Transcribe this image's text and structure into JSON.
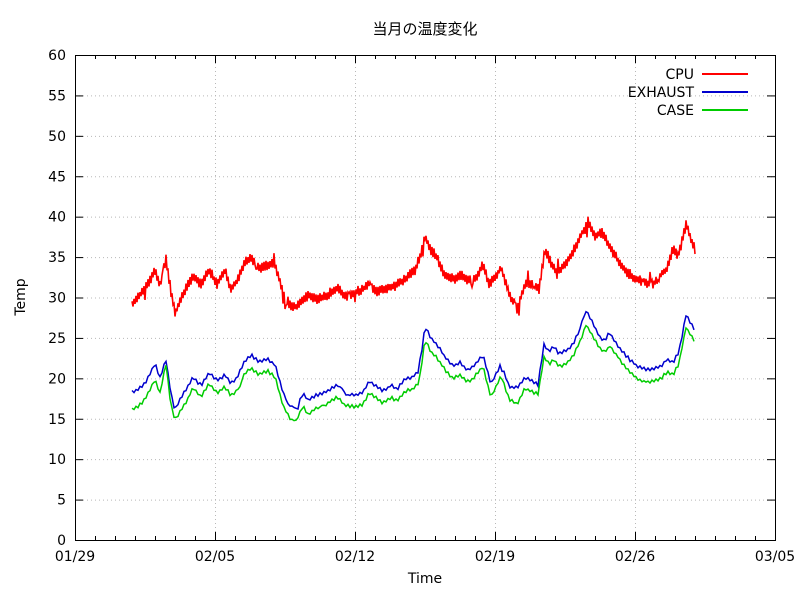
{
  "chart_data": {
    "type": "line",
    "title": "当月の温度変化",
    "xlabel": "Time",
    "ylabel": "Temp",
    "x_unit": "days after 01/29",
    "x_axis": {
      "tick_labels": [
        "01/29",
        "02/05",
        "02/12",
        "02/19",
        "02/26",
        "03/05"
      ],
      "tick_days": [
        0,
        7,
        14,
        21,
        28,
        35
      ],
      "minor_tick_interval_days": 1,
      "range_days": [
        0,
        35
      ]
    },
    "y_axis": {
      "ticks": [
        0,
        5,
        10,
        15,
        20,
        25,
        30,
        35,
        40,
        45,
        50,
        55,
        60
      ],
      "range": [
        0,
        60
      ]
    },
    "grid": {
      "visible": true,
      "style": "dotted",
      "color": "#b8b8b8"
    },
    "legend": {
      "position": "top-right-inside",
      "entries": [
        "CPU",
        "EXHAUST",
        "CASE"
      ]
    },
    "series": [
      {
        "name": "CPU",
        "color": "#ff0000",
        "style": "noisy-thick",
        "points": [
          [
            2.85,
            29.3
          ],
          [
            3.1,
            29.8
          ],
          [
            3.4,
            30.8
          ],
          [
            3.7,
            31.9
          ],
          [
            4.0,
            33.2
          ],
          [
            4.25,
            31.3
          ],
          [
            4.55,
            34.4
          ],
          [
            4.8,
            30.3
          ],
          [
            5.0,
            27.7
          ],
          [
            5.3,
            29.6
          ],
          [
            5.6,
            31.0
          ],
          [
            5.9,
            32.3
          ],
          [
            6.3,
            31.2
          ],
          [
            6.7,
            32.9
          ],
          [
            7.1,
            31.4
          ],
          [
            7.5,
            33.1
          ],
          [
            7.8,
            30.9
          ],
          [
            8.1,
            32.0
          ],
          [
            8.5,
            34.2
          ],
          [
            8.8,
            34.8
          ],
          [
            9.2,
            33.4
          ],
          [
            9.6,
            33.8
          ],
          [
            10.0,
            33.9
          ],
          [
            10.4,
            30.2
          ],
          [
            10.8,
            28.4
          ],
          [
            11.1,
            28.5
          ],
          [
            11.4,
            29.3
          ],
          [
            11.7,
            29.9
          ],
          [
            12.1,
            29.3
          ],
          [
            12.5,
            29.9
          ],
          [
            13.1,
            30.9
          ],
          [
            13.5,
            29.9
          ],
          [
            14.0,
            30.2
          ],
          [
            14.4,
            30.6
          ],
          [
            14.7,
            31.3
          ],
          [
            15.1,
            30.4
          ],
          [
            15.5,
            30.6
          ],
          [
            16.0,
            31.0
          ],
          [
            16.5,
            32.0
          ],
          [
            17.0,
            33.0
          ],
          [
            17.3,
            35.0
          ],
          [
            17.5,
            37.3
          ],
          [
            17.8,
            35.5
          ],
          [
            18.1,
            34.6
          ],
          [
            18.5,
            32.3
          ],
          [
            18.9,
            32.0
          ],
          [
            19.3,
            32.5
          ],
          [
            19.6,
            31.9
          ],
          [
            20.0,
            32.1
          ],
          [
            20.4,
            33.9
          ],
          [
            20.7,
            31.6
          ],
          [
            21.0,
            32.3
          ],
          [
            21.3,
            33.7
          ],
          [
            21.7,
            30.5
          ],
          [
            22.1,
            28.6
          ],
          [
            22.5,
            31.7
          ],
          [
            22.9,
            32.0
          ],
          [
            23.2,
            31.4
          ],
          [
            23.5,
            36.4
          ],
          [
            23.8,
            34.8
          ],
          [
            24.1,
            33.3
          ],
          [
            24.5,
            34.6
          ],
          [
            24.9,
            36.0
          ],
          [
            25.3,
            38.3
          ],
          [
            25.7,
            39.6
          ],
          [
            26.0,
            38.0
          ],
          [
            26.35,
            38.5
          ],
          [
            26.8,
            36.3
          ],
          [
            27.2,
            34.6
          ],
          [
            27.6,
            33.4
          ],
          [
            28.0,
            32.6
          ],
          [
            28.4,
            32.1
          ],
          [
            28.9,
            32.0
          ],
          [
            29.3,
            33.3
          ],
          [
            29.6,
            34.0
          ],
          [
            29.9,
            36.5
          ],
          [
            30.15,
            35.4
          ],
          [
            30.55,
            39.3
          ],
          [
            31.0,
            36.4
          ]
        ]
      },
      {
        "name": "EXHAUST",
        "color": "#0000cd",
        "style": "line",
        "points": [
          [
            2.85,
            18.3
          ],
          [
            3.1,
            18.6
          ],
          [
            3.5,
            19.5
          ],
          [
            4.0,
            21.9
          ],
          [
            4.25,
            20.1
          ],
          [
            4.55,
            22.4
          ],
          [
            4.8,
            18.2
          ],
          [
            5.0,
            16.1
          ],
          [
            5.3,
            17.6
          ],
          [
            5.6,
            18.9
          ],
          [
            5.9,
            20.3
          ],
          [
            6.3,
            19.3
          ],
          [
            6.7,
            20.9
          ],
          [
            7.1,
            19.9
          ],
          [
            7.5,
            20.6
          ],
          [
            7.8,
            19.5
          ],
          [
            8.1,
            20.2
          ],
          [
            8.5,
            22.4
          ],
          [
            8.8,
            23.1
          ],
          [
            9.2,
            22.2
          ],
          [
            9.6,
            22.6
          ],
          [
            10.0,
            21.9
          ],
          [
            10.4,
            18.4
          ],
          [
            10.8,
            16.6
          ],
          [
            11.1,
            16.7
          ],
          [
            11.4,
            18.3
          ],
          [
            11.65,
            17.4
          ],
          [
            12.0,
            18.0
          ],
          [
            12.4,
            18.3
          ],
          [
            13.1,
            19.4
          ],
          [
            13.5,
            18.3
          ],
          [
            14.0,
            18.1
          ],
          [
            14.4,
            18.4
          ],
          [
            14.7,
            19.8
          ],
          [
            15.1,
            19.2
          ],
          [
            15.4,
            18.6
          ],
          [
            15.8,
            19.3
          ],
          [
            16.1,
            18.8
          ],
          [
            16.5,
            20.0
          ],
          [
            16.9,
            20.2
          ],
          [
            17.2,
            21.0
          ],
          [
            17.5,
            26.3
          ],
          [
            17.8,
            24.9
          ],
          [
            18.1,
            24.1
          ],
          [
            18.5,
            22.6
          ],
          [
            18.9,
            21.5
          ],
          [
            19.25,
            21.9
          ],
          [
            19.6,
            21.1
          ],
          [
            19.9,
            21.4
          ],
          [
            20.4,
            22.9
          ],
          [
            20.8,
            19.3
          ],
          [
            21.3,
            21.9
          ],
          [
            21.7,
            19.1
          ],
          [
            22.1,
            19.0
          ],
          [
            22.5,
            20.2
          ],
          [
            22.8,
            19.9
          ],
          [
            23.15,
            19.4
          ],
          [
            23.45,
            24.3
          ],
          [
            23.7,
            23.4
          ],
          [
            23.95,
            24.0
          ],
          [
            24.2,
            23.2
          ],
          [
            24.6,
            23.6
          ],
          [
            24.9,
            24.4
          ],
          [
            25.3,
            26.5
          ],
          [
            25.55,
            28.6
          ],
          [
            25.9,
            27.0
          ],
          [
            26.2,
            25.4
          ],
          [
            26.5,
            24.8
          ],
          [
            26.7,
            25.9
          ],
          [
            27.0,
            24.7
          ],
          [
            27.4,
            23.3
          ],
          [
            27.8,
            22.2
          ],
          [
            28.2,
            21.4
          ],
          [
            28.6,
            21.1
          ],
          [
            29.0,
            21.3
          ],
          [
            29.3,
            21.5
          ],
          [
            29.6,
            22.4
          ],
          [
            29.9,
            22.0
          ],
          [
            30.2,
            23.5
          ],
          [
            30.55,
            27.9
          ],
          [
            31.0,
            26.0
          ]
        ]
      },
      {
        "name": "CASE",
        "color": "#00cc00",
        "style": "line",
        "points": [
          [
            2.85,
            16.1
          ],
          [
            3.1,
            16.4
          ],
          [
            3.5,
            17.4
          ],
          [
            4.0,
            19.8
          ],
          [
            4.25,
            18.1
          ],
          [
            4.55,
            21.6
          ],
          [
            4.8,
            16.4
          ],
          [
            5.0,
            14.7
          ],
          [
            5.3,
            15.9
          ],
          [
            5.6,
            17.2
          ],
          [
            5.9,
            18.8
          ],
          [
            6.3,
            17.7
          ],
          [
            6.7,
            19.3
          ],
          [
            7.1,
            18.3
          ],
          [
            7.5,
            19.0
          ],
          [
            7.8,
            17.9
          ],
          [
            8.1,
            18.6
          ],
          [
            8.5,
            20.6
          ],
          [
            8.8,
            21.3
          ],
          [
            9.2,
            20.4
          ],
          [
            9.6,
            20.9
          ],
          [
            10.0,
            20.2
          ],
          [
            10.4,
            16.6
          ],
          [
            10.8,
            14.8
          ],
          [
            11.1,
            15.0
          ],
          [
            11.4,
            16.6
          ],
          [
            11.65,
            15.6
          ],
          [
            12.0,
            16.3
          ],
          [
            12.4,
            16.6
          ],
          [
            13.1,
            17.8
          ],
          [
            13.5,
            16.7
          ],
          [
            14.0,
            16.5
          ],
          [
            14.4,
            16.8
          ],
          [
            14.7,
            18.2
          ],
          [
            15.1,
            17.6
          ],
          [
            15.4,
            17.0
          ],
          [
            15.8,
            17.7
          ],
          [
            16.1,
            17.2
          ],
          [
            16.5,
            18.4
          ],
          [
            16.9,
            18.7
          ],
          [
            17.2,
            19.5
          ],
          [
            17.5,
            24.8
          ],
          [
            17.8,
            23.3
          ],
          [
            18.1,
            22.5
          ],
          [
            18.5,
            21.0
          ],
          [
            18.9,
            19.9
          ],
          [
            19.25,
            20.4
          ],
          [
            19.6,
            19.5
          ],
          [
            19.9,
            19.8
          ],
          [
            20.4,
            21.4
          ],
          [
            20.8,
            17.5
          ],
          [
            21.3,
            20.3
          ],
          [
            21.7,
            17.4
          ],
          [
            22.1,
            16.7
          ],
          [
            22.5,
            18.7
          ],
          [
            22.8,
            18.3
          ],
          [
            23.15,
            17.9
          ],
          [
            23.45,
            22.5
          ],
          [
            23.7,
            21.7
          ],
          [
            23.95,
            22.2
          ],
          [
            24.2,
            21.4
          ],
          [
            24.6,
            21.9
          ],
          [
            24.9,
            22.7
          ],
          [
            25.3,
            24.7
          ],
          [
            25.55,
            26.5
          ],
          [
            25.9,
            25.0
          ],
          [
            26.2,
            23.6
          ],
          [
            26.5,
            23.0
          ],
          [
            26.7,
            24.0
          ],
          [
            27.0,
            22.9
          ],
          [
            27.4,
            21.5
          ],
          [
            27.8,
            20.4
          ],
          [
            28.2,
            19.6
          ],
          [
            28.6,
            19.3
          ],
          [
            29.0,
            19.5
          ],
          [
            29.3,
            19.8
          ],
          [
            29.6,
            20.7
          ],
          [
            29.9,
            20.3
          ],
          [
            30.2,
            21.8
          ],
          [
            30.55,
            26.2
          ],
          [
            31.0,
            24.4
          ]
        ]
      }
    ]
  }
}
